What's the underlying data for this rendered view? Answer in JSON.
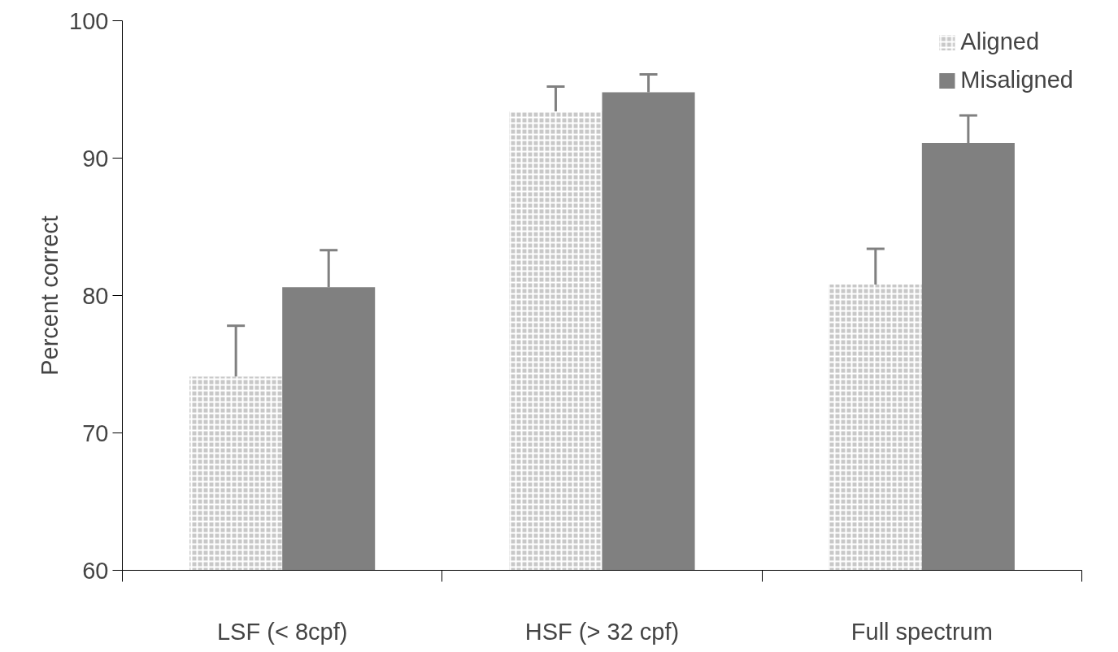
{
  "chart_data": {
    "type": "bar",
    "ylabel": "Percent correct",
    "categories": [
      "LSF (< 8cpf)",
      "HSF (> 32 cpf)",
      "Full spectrum"
    ],
    "series": [
      {
        "name": "Aligned",
        "color": "#c8c8c8",
        "values": [
          74.1,
          93.4,
          80.8
        ],
        "errors": [
          [
            74.1,
            77.8
          ],
          [
            93.4,
            95.2
          ],
          [
            80.8,
            83.4
          ]
        ]
      },
      {
        "name": "Misaligned",
        "color": "#808080",
        "values": [
          80.6,
          94.8,
          91.1
        ],
        "errors": [
          [
            80.6,
            83.3
          ],
          [
            94.8,
            96.1
          ],
          [
            91.1,
            93.1
          ]
        ]
      }
    ],
    "ylim": [
      60,
      100
    ],
    "yticks": [
      60,
      70,
      80,
      90,
      100
    ],
    "grid": false,
    "legend": "top right"
  }
}
